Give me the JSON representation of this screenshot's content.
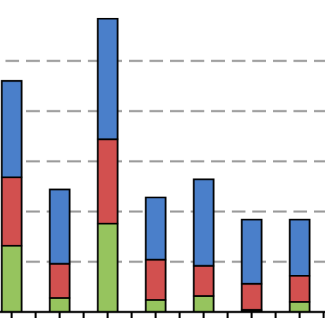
{
  "chart_data": {
    "type": "bar",
    "stacked": true,
    "title": "",
    "xlabel": "",
    "ylabel": "",
    "categories": [
      "",
      "",
      "",
      "",
      "",
      "",
      ""
    ],
    "series": [
      {
        "values": [
          33,
          7,
          44,
          6,
          8,
          1,
          5
        ]
      },
      {
        "values": [
          34,
          17,
          42,
          20,
          15,
          13,
          13
        ]
      },
      {
        "values": [
          48,
          37,
          60,
          31,
          43,
          32,
          28
        ]
      }
    ],
    "ylim": [
      0,
      150
    ],
    "y_gridlines": [
      25,
      50,
      75,
      100,
      125
    ],
    "grid": true,
    "legend": "none",
    "colors": [
      "#96c45e",
      "#d2504f",
      "#4a7fca"
    ]
  }
}
